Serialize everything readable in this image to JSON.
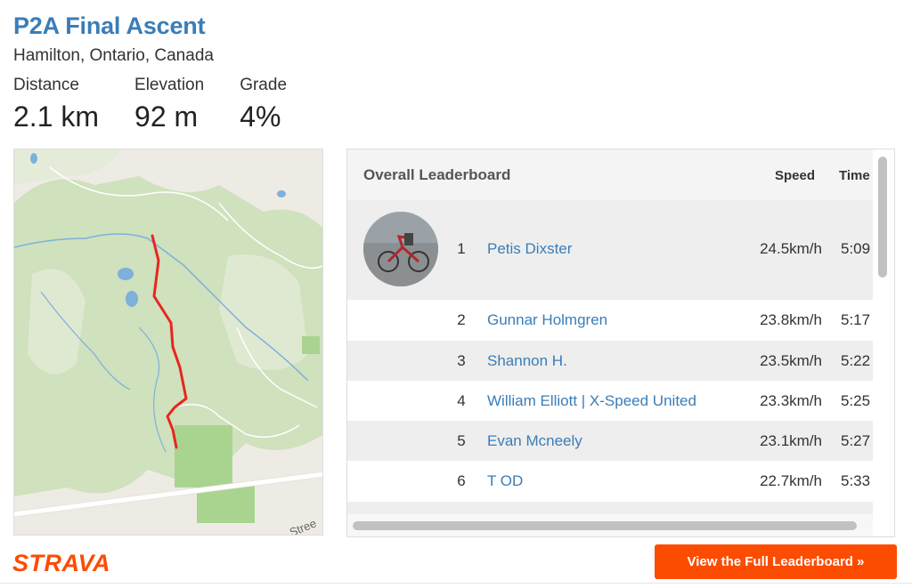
{
  "segment": {
    "title": "P2A Final Ascent",
    "location": "Hamilton, Ontario, Canada"
  },
  "stats": [
    {
      "label": "Distance",
      "value": "2.1 km"
    },
    {
      "label": "Elevation",
      "value": "92 m"
    },
    {
      "label": "Grade",
      "value": "4%"
    }
  ],
  "map": {
    "street_label": "Stree",
    "route_color": "#e8261f"
  },
  "leaderboard": {
    "title": "Overall Leaderboard",
    "col_speed": "Speed",
    "col_time": "Time",
    "rows": [
      {
        "rank": "1",
        "name": "Petis Dixster",
        "speed": "24.5km/h",
        "time": "5:09"
      },
      {
        "rank": "2",
        "name": "Gunnar Holmgren",
        "speed": "23.8km/h",
        "time": "5:17"
      },
      {
        "rank": "3",
        "name": "Shannon H.",
        "speed": "23.5km/h",
        "time": "5:22"
      },
      {
        "rank": "4",
        "name": "William Elliott | X-Speed United",
        "speed": "23.3km/h",
        "time": "5:25"
      },
      {
        "rank": "5",
        "name": "Evan Mcneely",
        "speed": "23.1km/h",
        "time": "5:27"
      },
      {
        "rank": "6",
        "name": "T OD",
        "speed": "22.7km/h",
        "time": "5:33"
      }
    ]
  },
  "footer": {
    "logo": "STRAVA",
    "cta_label": "View the Full Leaderboard »"
  },
  "colors": {
    "accent": "#fc4c02",
    "link": "#3a7db8"
  }
}
